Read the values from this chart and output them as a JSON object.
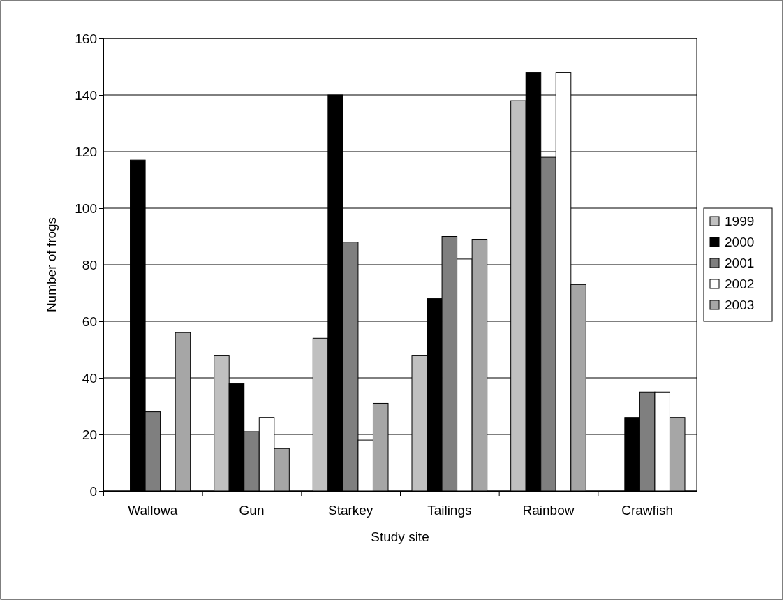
{
  "chart_data": {
    "type": "bar",
    "xlabel": "Study site",
    "ylabel": "Number of frogs",
    "categories": [
      "Wallowa",
      "Gun",
      "Starkey",
      "Tailings",
      "Rainbow",
      "Crawfish"
    ],
    "series": [
      {
        "name": "1999",
        "color": "#c0c0c0",
        "values": [
          null,
          48,
          54,
          48,
          138,
          null
        ]
      },
      {
        "name": "2000",
        "color": "#000000",
        "values": [
          117,
          38,
          140,
          68,
          148,
          26
        ]
      },
      {
        "name": "2001",
        "color": "#7f7f7f",
        "values": [
          28,
          21,
          88,
          90,
          118,
          35
        ]
      },
      {
        "name": "2002",
        "color": "#ffffff",
        "values": [
          null,
          26,
          18,
          82,
          148,
          35
        ]
      },
      {
        "name": "2003",
        "color": "#a6a6a6",
        "values": [
          56,
          15,
          31,
          89,
          73,
          26
        ]
      }
    ],
    "ylim": [
      0,
      160
    ],
    "yticks": [
      0,
      20,
      40,
      60,
      80,
      100,
      120,
      140,
      160
    ],
    "grid": "y",
    "legend": "right"
  }
}
